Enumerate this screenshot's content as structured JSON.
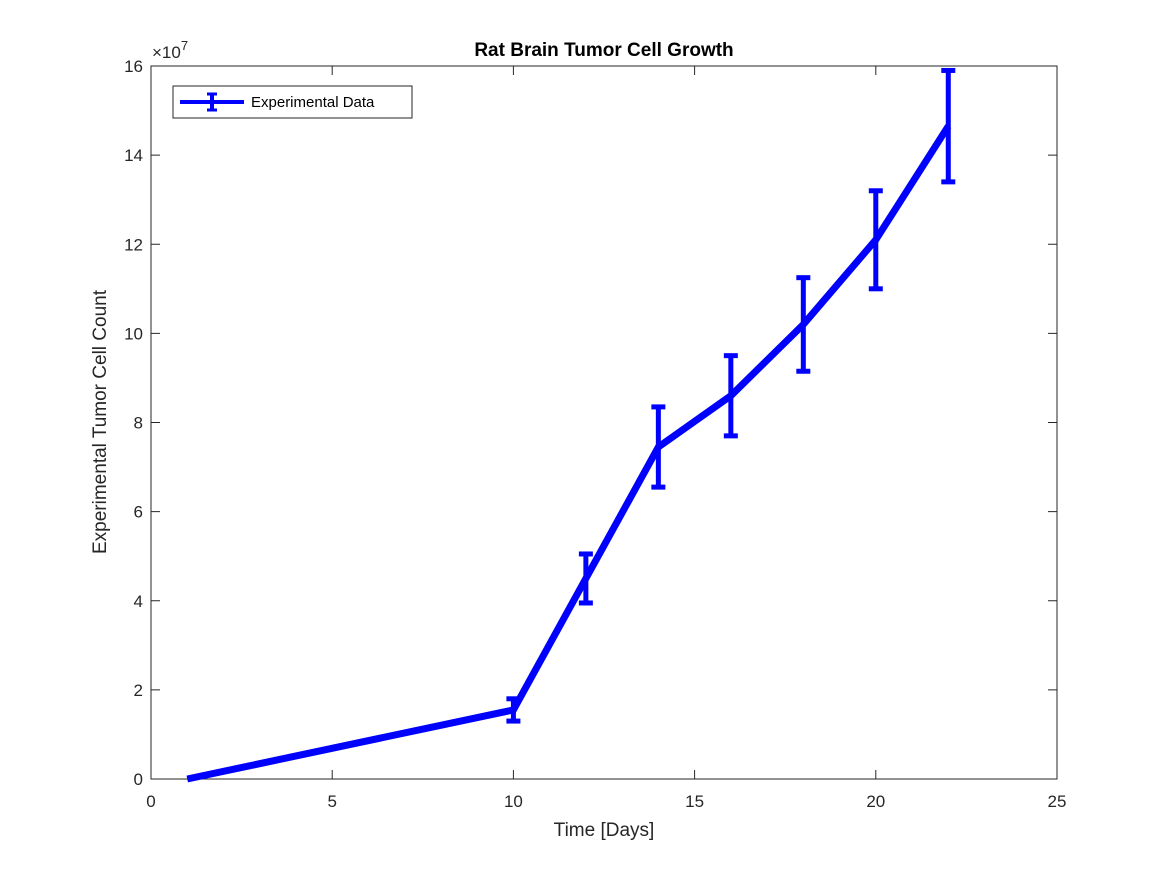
{
  "chart_data": {
    "type": "line",
    "title": "Rat Brain Tumor Cell Growth",
    "xlabel": "Time [Days]",
    "ylabel": "Experimental Tumor Cell Count",
    "y_exponent_label": "×10",
    "y_exponent_power": "7",
    "y_scale": 10000000,
    "xlim": [
      0,
      25
    ],
    "ylim": [
      0,
      16
    ],
    "x_ticks": [
      0,
      5,
      10,
      15,
      20,
      25
    ],
    "y_ticks": [
      0,
      2,
      4,
      6,
      8,
      10,
      12,
      14,
      16
    ],
    "x_tick_labels": [
      "0",
      "5",
      "10",
      "15",
      "20",
      "25"
    ],
    "y_tick_labels": [
      "0",
      "2",
      "4",
      "6",
      "8",
      "10",
      "12",
      "14",
      "16"
    ],
    "grid": false,
    "legend_position": "top-left",
    "series": [
      {
        "name": "Experimental Data",
        "color": "#0000ff",
        "x": [
          1,
          10,
          12,
          14,
          16,
          18,
          20,
          22
        ],
        "y": [
          0.0,
          1.55,
          4.5,
          7.45,
          8.6,
          10.2,
          12.1,
          14.65
        ],
        "y_lower": [
          0.0,
          1.3,
          3.95,
          6.55,
          7.7,
          9.15,
          11.0,
          13.4
        ],
        "y_upper": [
          0.0,
          1.8,
          5.05,
          8.35,
          9.5,
          11.25,
          13.2,
          15.9
        ]
      }
    ]
  }
}
